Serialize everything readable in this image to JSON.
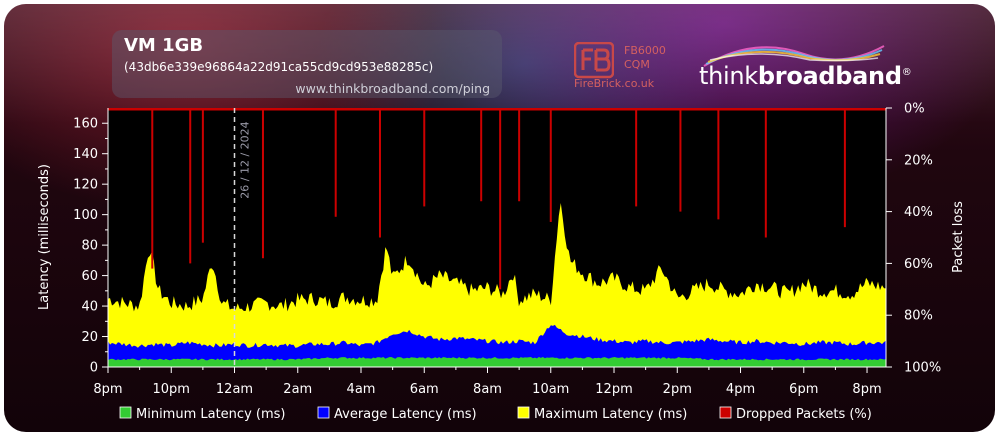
{
  "header": {
    "title": "VM 1GB",
    "subtitle": "(43db6e339e96864a22d91ca55cd9cd953e88285c)",
    "url": "www.thinkbroadband.com/ping"
  },
  "branding": {
    "firebrick_model_line1": "FB6000",
    "firebrick_model_line2": "CQM",
    "firebrick_site": "FireBrick.co.uk",
    "tb_logo_light": "think",
    "tb_logo_bold": "broadband",
    "tb_logo_mark": "®"
  },
  "chart_data": {
    "type": "area",
    "ylabel": "Latency (milliseconds)",
    "y2label": "Packet loss",
    "ylim": [
      0,
      170
    ],
    "yticks": [
      0,
      20,
      40,
      60,
      80,
      100,
      120,
      140,
      160
    ],
    "y2lim": [
      0,
      100
    ],
    "y2ticks": [
      "0%",
      "20%",
      "40%",
      "60%",
      "80%",
      "100%"
    ],
    "xticks": [
      "8pm",
      "10pm",
      "12am",
      "2am",
      "4am",
      "6am",
      "8am",
      "10am",
      "12pm",
      "2pm",
      "4pm",
      "6pm",
      "8pm"
    ],
    "x_range_hours": [
      0,
      24.6
    ],
    "date_marker": {
      "label": "26 / 12 / 2024",
      "x_hours": 4.0
    },
    "colors": {
      "minimum": "#33cc33",
      "average": "#0000ff",
      "maximum": "#ffff00",
      "dropped": "#cc0000",
      "plot_bg": "#000000"
    },
    "series": [
      {
        "name": "Minimum Latency (ms)",
        "x_hours": [
          0,
          1,
          2,
          3,
          4,
          5,
          6,
          7,
          8,
          9,
          10,
          11,
          12,
          13,
          14,
          15,
          16,
          17,
          18,
          19,
          20,
          21,
          22,
          23,
          24,
          24.6
        ],
        "values": [
          5,
          5,
          5,
          5,
          5,
          5,
          5,
          6,
          6,
          6,
          6,
          6,
          6,
          6,
          6,
          6,
          6,
          6,
          6,
          5,
          5,
          5,
          5,
          5,
          5,
          5
        ]
      },
      {
        "name": "Average Latency (ms)",
        "x_hours": [
          0,
          0.5,
          1,
          1.5,
          2,
          2.5,
          3,
          3.5,
          4,
          4.5,
          5,
          5.5,
          6,
          6.5,
          7,
          7.5,
          8,
          8.5,
          9,
          9.5,
          10,
          10.5,
          11,
          11.5,
          12,
          12.5,
          13,
          13.5,
          14,
          14.5,
          15,
          15.5,
          16,
          16.5,
          17,
          17.5,
          18,
          18.5,
          19,
          19.5,
          20,
          20.5,
          21,
          21.5,
          22,
          22.5,
          23,
          23.5,
          24,
          24.6
        ],
        "values": [
          16,
          15,
          14,
          15,
          14,
          16,
          15,
          14,
          15,
          14,
          15,
          14,
          14,
          15,
          15,
          16,
          14,
          16,
          22,
          24,
          20,
          18,
          19,
          18,
          17,
          16,
          17,
          16,
          28,
          22,
          20,
          18,
          17,
          16,
          17,
          16,
          16,
          17,
          18,
          17,
          16,
          17,
          16,
          16,
          15,
          16,
          16,
          15,
          16,
          16
        ]
      },
      {
        "name": "Maximum Latency (ms)",
        "x_hours": [
          0,
          0.5,
          1,
          1.3,
          1.6,
          2,
          2.5,
          3,
          3.3,
          3.6,
          4,
          4.5,
          5,
          5.5,
          6,
          6.5,
          7,
          7.5,
          8,
          8.5,
          8.8,
          9,
          9.5,
          10,
          10.5,
          11,
          11.5,
          12,
          12.5,
          12.8,
          13,
          13.5,
          14,
          14.3,
          14.6,
          15,
          15.5,
          16,
          16.5,
          17,
          17.5,
          18,
          18.5,
          19,
          19.5,
          20,
          20.5,
          21,
          21.5,
          22,
          22.5,
          23,
          23.5,
          24,
          24.6
        ],
        "values": [
          45,
          42,
          40,
          80,
          50,
          42,
          40,
          45,
          70,
          42,
          38,
          40,
          42,
          40,
          44,
          45,
          42,
          46,
          44,
          44,
          80,
          58,
          72,
          52,
          60,
          55,
          50,
          52,
          48,
          62,
          44,
          48,
          44,
          110,
          70,
          62,
          55,
          58,
          52,
          50,
          65,
          45,
          50,
          55,
          50,
          48,
          55,
          52,
          48,
          55,
          50,
          50,
          48,
          55,
          52
        ]
      },
      {
        "name": "Dropped Packets (%)",
        "x_hours": [
          1.4,
          2.6,
          3.0,
          4.9,
          7.2,
          8.6,
          10.0,
          11.8,
          12.4,
          13.0,
          14.0,
          16.7,
          18.1,
          19.3,
          20.8,
          23.3
        ],
        "values": [
          62,
          60,
          52,
          58,
          42,
          50,
          38,
          36,
          70,
          36,
          44,
          38,
          40,
          43,
          50,
          46
        ]
      }
    ],
    "legend": [
      {
        "label": "Minimum Latency (ms)",
        "color": "#33cc33"
      },
      {
        "label": "Average Latency (ms)",
        "color": "#0000ff"
      },
      {
        "label": "Maximum Latency (ms)",
        "color": "#ffff00"
      },
      {
        "label": "Dropped Packets (%)",
        "color": "#cc0000"
      }
    ],
    "legend_position": "bottom"
  }
}
